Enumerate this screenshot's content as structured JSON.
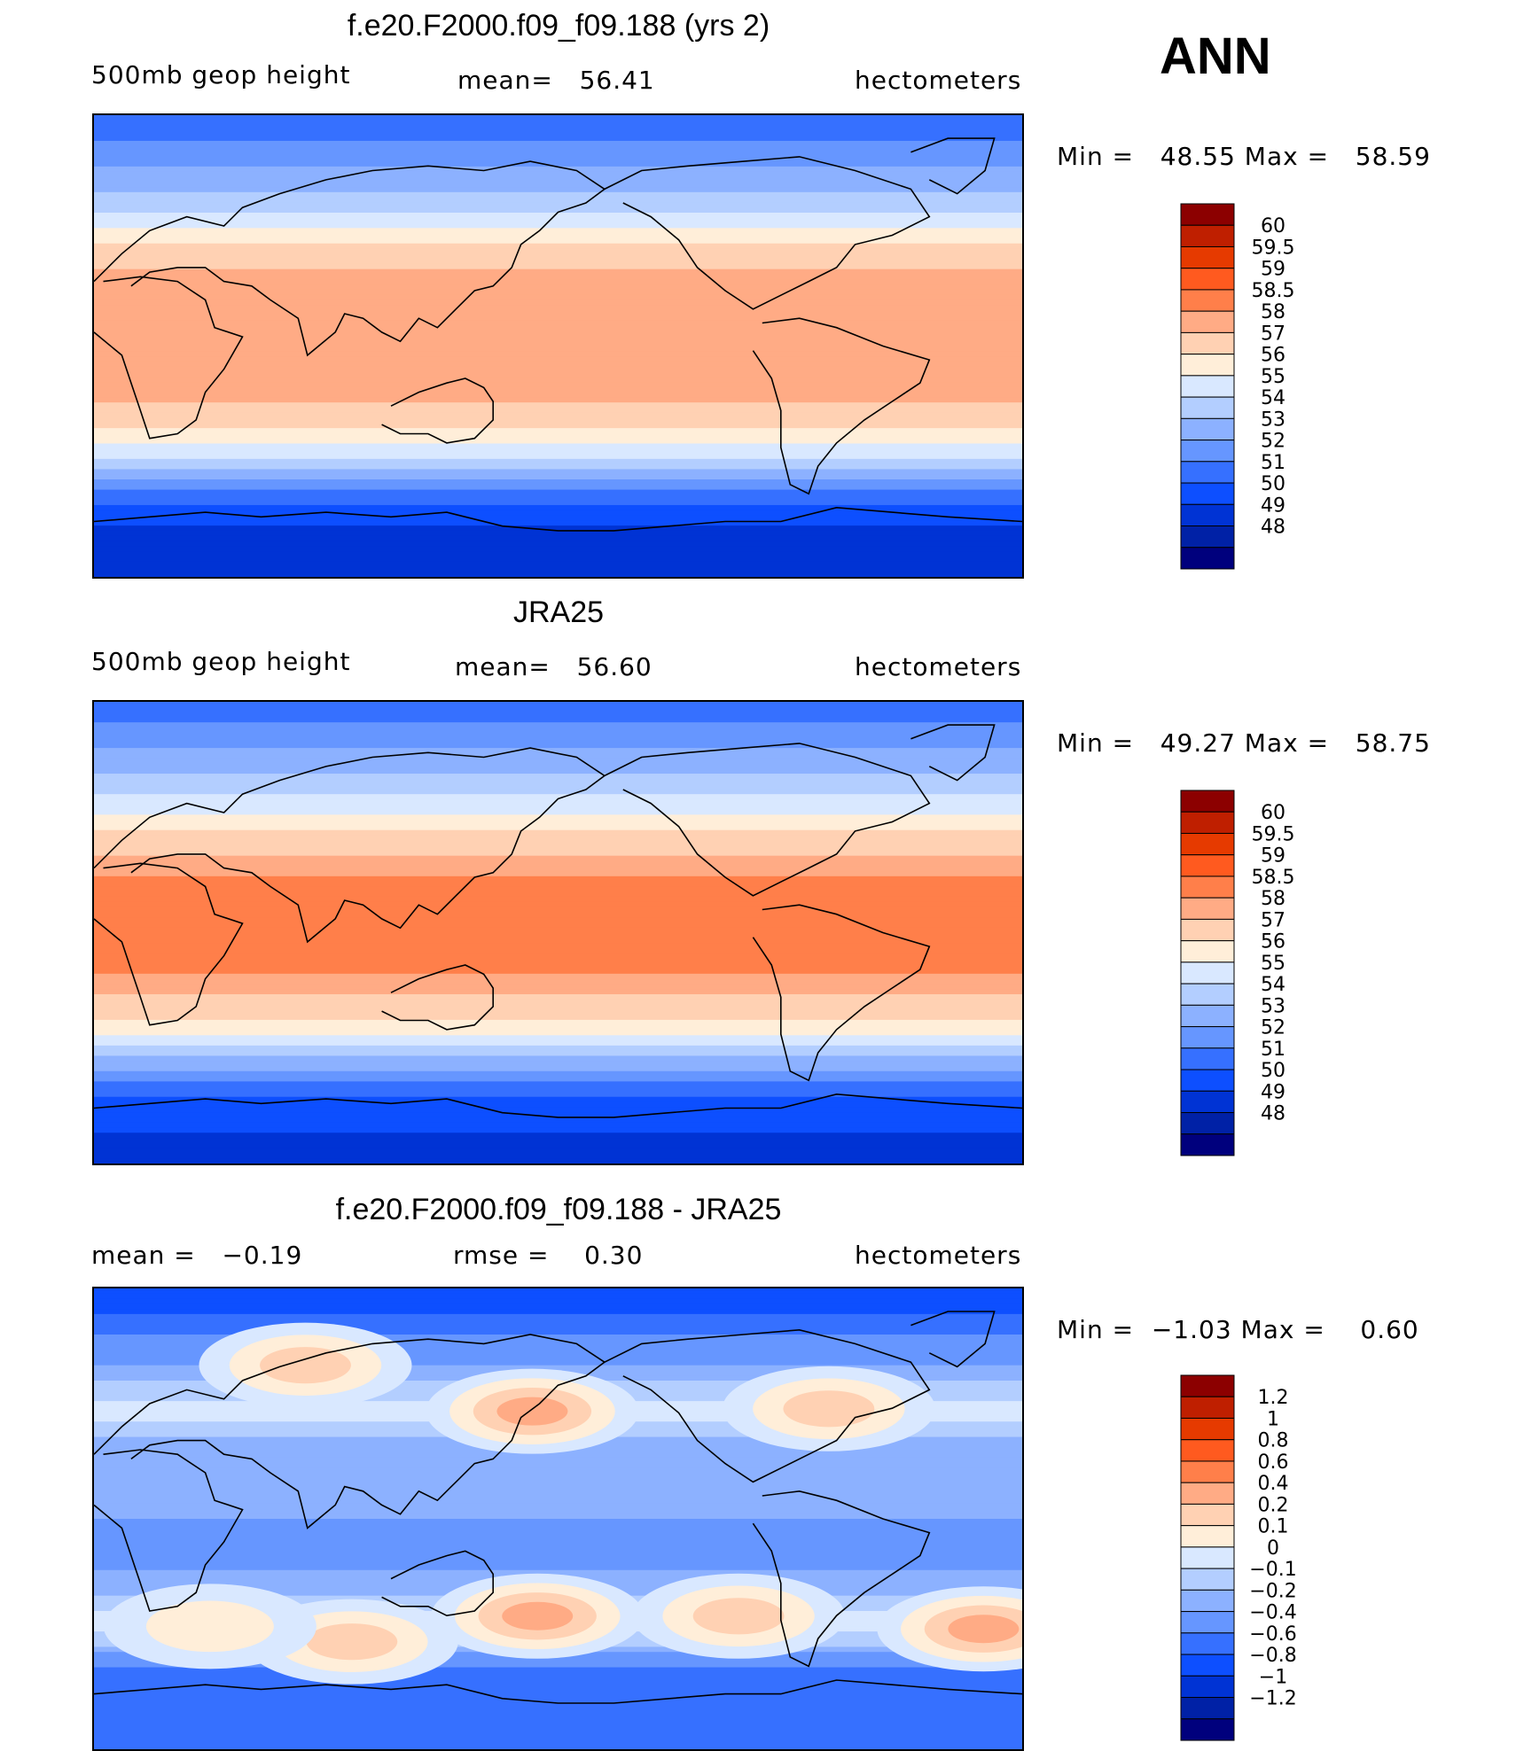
{
  "season": "ANN",
  "colors": {
    "coastline": "#000000",
    "abs_scale": [
      "#00007d",
      "#0021a6",
      "#0033d4",
      "#0d4fff",
      "#3670ff",
      "#6696ff",
      "#8cb1ff",
      "#b3ceff",
      "#d9e8ff",
      "#ffeed9",
      "#ffd1b3",
      "#ffab85",
      "#ff7f4a",
      "#ff5a1f",
      "#e63a00",
      "#bf1f00",
      "#8c0000"
    ],
    "diff_scale": [
      "#00007d",
      "#0021a6",
      "#0033d4",
      "#0d4fff",
      "#3670ff",
      "#6696ff",
      "#8cb1ff",
      "#b3ceff",
      "#d9e8ff",
      "#ffeed9",
      "#ffd1b3",
      "#ffab85",
      "#ff7f4a",
      "#ff5a1f",
      "#e63a00",
      "#bf1f00",
      "#8c0000"
    ]
  },
  "chart_data": [
    {
      "type": "heatmap",
      "title": "f.e20.F2000.f09_f09.188 (yrs 2)",
      "left_label": "500mb geop height",
      "center_label": "mean=   56.41",
      "right_label": "hectometers",
      "min_text": "Min =   48.55 Max =   58.59",
      "min": 48.55,
      "max": 58.59,
      "mean": 56.41,
      "units": "hectometers",
      "legend_levels": [
        "60",
        "59.5",
        "59",
        "58.5",
        "58",
        "57",
        "56",
        "55",
        "54",
        "53",
        "52",
        "51",
        "50",
        "49",
        "48"
      ],
      "zonal_profile": [
        {
          "lat": 90,
          "value": 51.2
        },
        {
          "lat": 80,
          "value": 52.0
        },
        {
          "lat": 70,
          "value": 53.0
        },
        {
          "lat": 60,
          "value": 54.0
        },
        {
          "lat": 50,
          "value": 55.4
        },
        {
          "lat": 40,
          "value": 56.9
        },
        {
          "lat": 30,
          "value": 58.0
        },
        {
          "lat": 20,
          "value": 58.4
        },
        {
          "lat": 10,
          "value": 58.2
        },
        {
          "lat": 0,
          "value": 58.2
        },
        {
          "lat": -10,
          "value": 58.2
        },
        {
          "lat": -20,
          "value": 58.1
        },
        {
          "lat": -30,
          "value": 57.4
        },
        {
          "lat": -40,
          "value": 55.8
        },
        {
          "lat": -50,
          "value": 53.6
        },
        {
          "lat": -60,
          "value": 51.3
        },
        {
          "lat": -70,
          "value": 50.0
        },
        {
          "lat": -80,
          "value": 49.3
        },
        {
          "lat": -90,
          "value": 49.1
        }
      ]
    },
    {
      "type": "heatmap",
      "title": "JRA25",
      "left_label": "500mb geop height",
      "center_label": "mean=   56.60",
      "right_label": "hectometers",
      "min_text": "Min =   49.27 Max =   58.75",
      "min": 49.27,
      "max": 58.75,
      "mean": 56.6,
      "units": "hectometers",
      "legend_levels": [
        "60",
        "59.5",
        "59",
        "58.5",
        "58",
        "57",
        "56",
        "55",
        "54",
        "53",
        "52",
        "51",
        "50",
        "49",
        "48"
      ],
      "zonal_profile": [
        {
          "lat": 90,
          "value": 51.5
        },
        {
          "lat": 80,
          "value": 52.2
        },
        {
          "lat": 70,
          "value": 53.1
        },
        {
          "lat": 60,
          "value": 54.1
        },
        {
          "lat": 50,
          "value": 55.5
        },
        {
          "lat": 40,
          "value": 57.0
        },
        {
          "lat": 30,
          "value": 58.1
        },
        {
          "lat": 20,
          "value": 58.6
        },
        {
          "lat": 10,
          "value": 58.7
        },
        {
          "lat": 0,
          "value": 58.7
        },
        {
          "lat": -10,
          "value": 58.7
        },
        {
          "lat": -20,
          "value": 58.3
        },
        {
          "lat": -30,
          "value": 57.5
        },
        {
          "lat": -40,
          "value": 55.9
        },
        {
          "lat": -50,
          "value": 53.7
        },
        {
          "lat": -60,
          "value": 51.5
        },
        {
          "lat": -70,
          "value": 50.4
        },
        {
          "lat": -80,
          "value": 49.9
        },
        {
          "lat": -90,
          "value": 49.6
        }
      ]
    },
    {
      "type": "heatmap",
      "title": "f.e20.F2000.f09_f09.188 - JRA25",
      "left_label": "mean =   −0.19",
      "center_label": "rmse =    0.30",
      "right_label": "hectometers",
      "min_text": "Min =  −1.03 Max =    0.60",
      "min": -1.03,
      "max": 0.6,
      "mean": -0.19,
      "rmse": 0.3,
      "units": "hectometers",
      "legend_levels": [
        "1.2",
        "1",
        "0.8",
        "0.6",
        "0.4",
        "0.2",
        "0.1",
        "0",
        "−0.1",
        "−0.2",
        "−0.4",
        "−0.6",
        "−0.8",
        "−1",
        "−1.2"
      ],
      "zonal_profile": [
        {
          "lat": 90,
          "value": -0.7
        },
        {
          "lat": 80,
          "value": -0.6
        },
        {
          "lat": 70,
          "value": -0.35
        },
        {
          "lat": 60,
          "value": -0.2
        },
        {
          "lat": 50,
          "value": -0.05
        },
        {
          "lat": 40,
          "value": 0.05
        },
        {
          "lat": 30,
          "value": -0.15
        },
        {
          "lat": 20,
          "value": -0.2
        },
        {
          "lat": 10,
          "value": -0.2
        },
        {
          "lat": 0,
          "value": -0.2
        },
        {
          "lat": -10,
          "value": -0.22
        },
        {
          "lat": -20,
          "value": -0.2
        },
        {
          "lat": -30,
          "value": -0.1
        },
        {
          "lat": -40,
          "value": 0.05
        },
        {
          "lat": -50,
          "value": -0.1
        },
        {
          "lat": -60,
          "value": -0.45
        },
        {
          "lat": -70,
          "value": -0.55
        },
        {
          "lat": -80,
          "value": -0.6
        },
        {
          "lat": -90,
          "value": -0.6
        }
      ],
      "anomalies": [
        {
          "lon": 170,
          "lat": 42,
          "value": 0.5
        },
        {
          "lon": 82,
          "lat": 60,
          "value": 0.2
        },
        {
          "lon": 285,
          "lat": 43,
          "value": 0.35
        },
        {
          "lon": 172,
          "lat": -38,
          "value": 0.4
        },
        {
          "lon": 100,
          "lat": -48,
          "value": 0.3
        },
        {
          "lon": 250,
          "lat": -38,
          "value": 0.25
        },
        {
          "lon": 345,
          "lat": -43,
          "value": 0.5
        },
        {
          "lon": 45,
          "lat": -42,
          "value": 0.15
        }
      ]
    }
  ]
}
